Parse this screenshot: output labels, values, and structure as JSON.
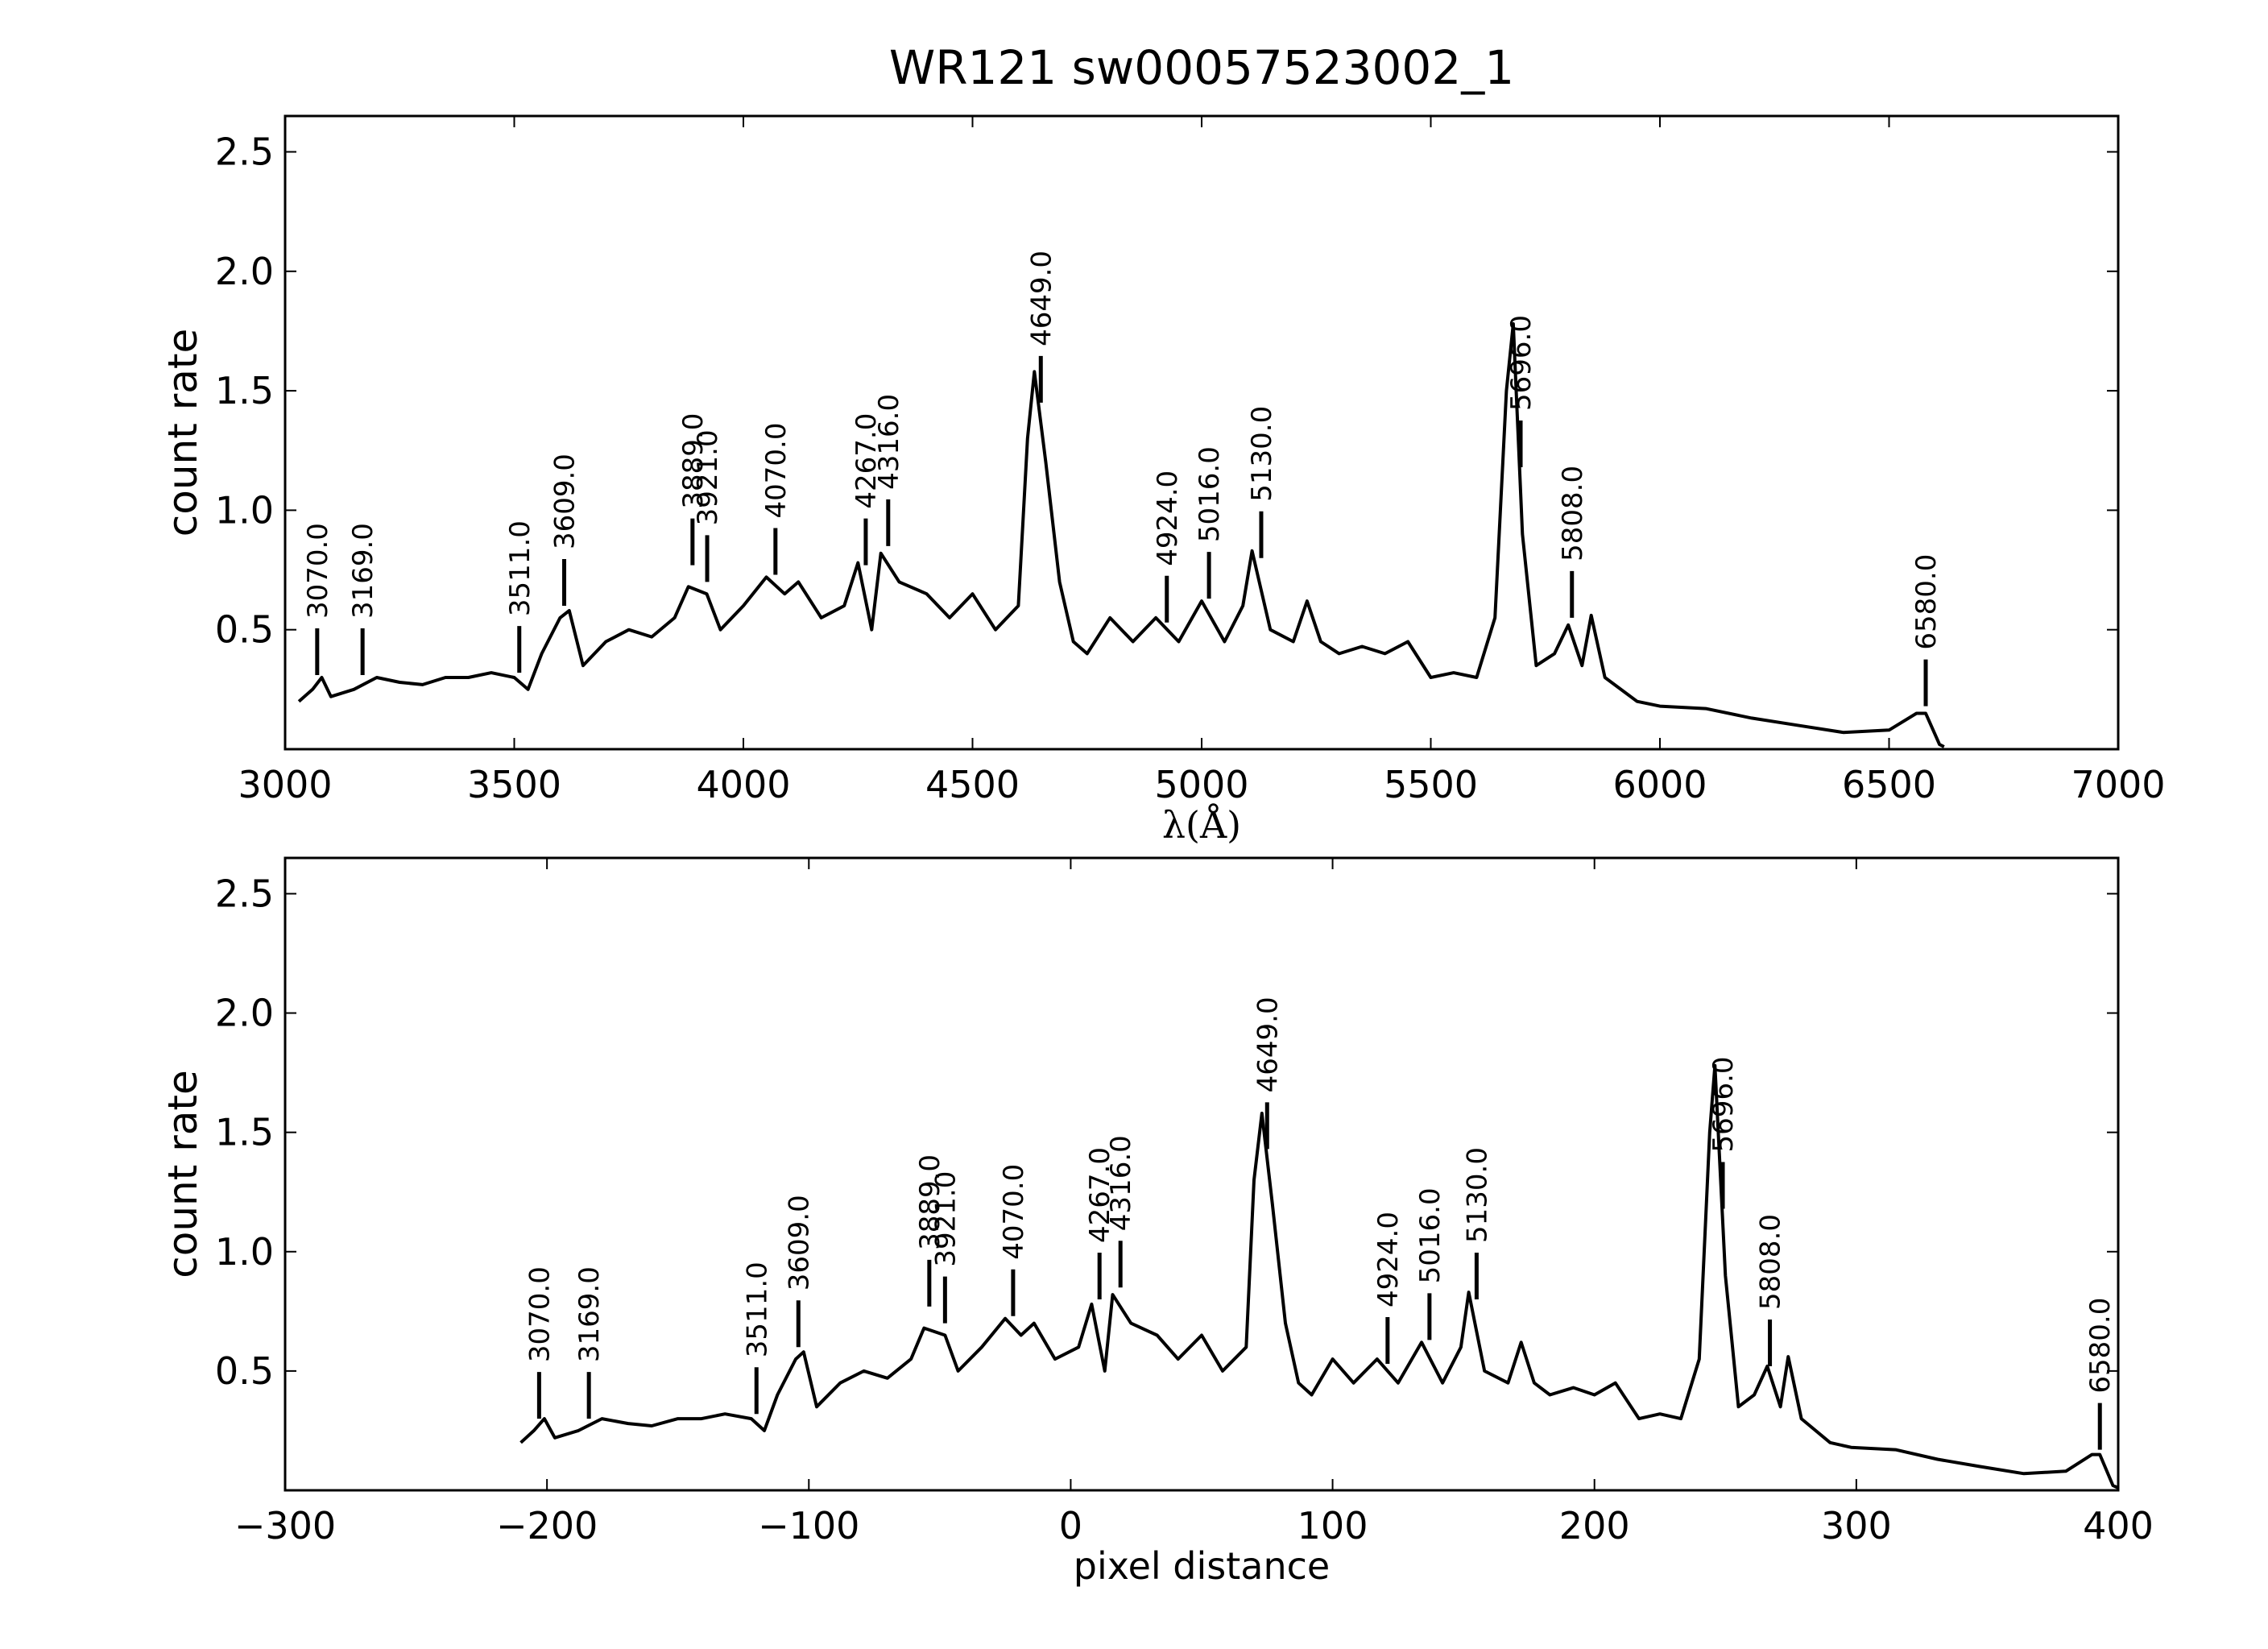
{
  "chart_data": [
    {
      "type": "line",
      "title": "WR121  sw00057523002_1",
      "xlabel": "λ(Å)",
      "ylabel": "count rate",
      "xlim": [
        3000,
        7000
      ],
      "ylim": [
        0,
        2.65
      ],
      "xticks": [
        3000,
        3500,
        4000,
        4500,
        5000,
        5500,
        6000,
        6500,
        7000
      ],
      "yticks": [
        0.5,
        {
          "value": 1,
          "label": "1.0"
        },
        1.5,
        {
          "value": 2,
          "label": "2.0"
        },
        2.5
      ],
      "x": [
        3030,
        3060,
        3080,
        3100,
        3150,
        3200,
        3250,
        3300,
        3350,
        3400,
        3450,
        3500,
        3530,
        3560,
        3600,
        3620,
        3650,
        3700,
        3750,
        3800,
        3850,
        3880,
        3920,
        3950,
        4000,
        4050,
        4090,
        4120,
        4170,
        4220,
        4250,
        4280,
        4300,
        4340,
        4400,
        4450,
        4500,
        4550,
        4600,
        4620,
        4635,
        4660,
        4690,
        4720,
        4750,
        4800,
        4850,
        4900,
        4950,
        5000,
        5050,
        5090,
        5110,
        5150,
        5200,
        5230,
        5260,
        5300,
        5350,
        5400,
        5450,
        5500,
        5550,
        5600,
        5640,
        5665,
        5680,
        5700,
        5730,
        5770,
        5800,
        5830,
        5850,
        5880,
        5950,
        6000,
        6100,
        6200,
        6300,
        6400,
        6500,
        6560,
        6580,
        6610,
        6620
      ],
      "series": [
        {
          "color": "#000000",
          "values": [
            0.2,
            0.25,
            0.3,
            0.22,
            0.25,
            0.3,
            0.28,
            0.27,
            0.3,
            0.3,
            0.32,
            0.3,
            0.25,
            0.4,
            0.55,
            0.58,
            0.35,
            0.45,
            0.5,
            0.47,
            0.55,
            0.68,
            0.65,
            0.5,
            0.6,
            0.72,
            0.65,
            0.7,
            0.55,
            0.6,
            0.78,
            0.5,
            0.82,
            0.7,
            0.65,
            0.55,
            0.65,
            0.5,
            0.6,
            1.3,
            1.58,
            1.2,
            0.7,
            0.45,
            0.4,
            0.55,
            0.45,
            0.55,
            0.45,
            0.62,
            0.45,
            0.6,
            0.83,
            0.5,
            0.45,
            0.62,
            0.45,
            0.4,
            0.43,
            0.4,
            0.45,
            0.3,
            0.32,
            0.3,
            0.55,
            1.5,
            1.78,
            0.9,
            0.35,
            0.4,
            0.52,
            0.35,
            0.56,
            0.3,
            0.2,
            0.18,
            0.17,
            0.13,
            0.1,
            0.07,
            0.08,
            0.15,
            0.15,
            0.02,
            0.01
          ]
        }
      ],
      "annotations": [
        {
          "x": 3070,
          "y": 0.31,
          "label": "3070.0"
        },
        {
          "x": 3169,
          "y": 0.31,
          "label": "3169.0"
        },
        {
          "x": 3511,
          "y": 0.32,
          "label": "3511.0"
        },
        {
          "x": 3609,
          "y": 0.6,
          "label": "3609.0"
        },
        {
          "x": 3889,
          "y": 0.77,
          "label": "3889.0"
        },
        {
          "x": 3921,
          "y": 0.7,
          "label": "3921.0"
        },
        {
          "x": 4070,
          "y": 0.73,
          "label": "4070.0"
        },
        {
          "x": 4267,
          "y": 0.77,
          "label": "4267.0"
        },
        {
          "x": 4316,
          "y": 0.85,
          "label": "4316.0"
        },
        {
          "x": 4649,
          "y": 1.45,
          "label": "4649.0"
        },
        {
          "x": 4924,
          "y": 0.53,
          "label": "4924.0"
        },
        {
          "x": 5016,
          "y": 0.63,
          "label": "5016.0"
        },
        {
          "x": 5130,
          "y": 0.8,
          "label": "5130.0"
        },
        {
          "x": 5696,
          "y": 1.18,
          "label": "5696.0"
        },
        {
          "x": 5808,
          "y": 0.55,
          "label": "5808.0"
        },
        {
          "x": 6580,
          "y": 0.18,
          "label": "6580.0"
        }
      ]
    },
    {
      "type": "line",
      "xlabel": "pixel distance",
      "ylabel": "count rate",
      "xlim": [
        -300,
        400
      ],
      "ylim": [
        0,
        2.65
      ],
      "xticks": [
        {
          "value": -300,
          "label": "−300"
        },
        {
          "value": -200,
          "label": "−200"
        },
        {
          "value": -100,
          "label": "−100"
        },
        0,
        100,
        200,
        300,
        400
      ],
      "yticks": [
        0.5,
        {
          "value": 1,
          "label": "1.0"
        },
        1.5,
        {
          "value": 2,
          "label": "2.0"
        },
        2.5
      ],
      "x": [
        -210,
        -205,
        -201,
        -197,
        -188,
        -179,
        -169,
        -160,
        -150,
        -141,
        -132,
        -122,
        -117,
        -112,
        -105,
        -102,
        -97,
        -88,
        -79,
        -70,
        -61,
        -56,
        -48,
        -43,
        -34,
        -25,
        -19,
        -14,
        -6,
        3,
        8,
        13,
        16,
        23,
        33,
        41,
        50,
        58,
        67,
        70,
        73,
        77,
        82,
        87,
        92,
        100,
        108,
        117,
        125,
        134,
        142,
        149,
        152,
        158,
        167,
        172,
        177,
        183,
        192,
        200,
        208,
        217,
        225,
        233,
        240,
        244,
        246,
        250,
        255,
        261,
        266,
        271,
        274,
        279,
        290,
        298,
        315,
        331,
        347,
        364,
        380,
        390,
        393,
        398,
        400
      ],
      "series": [
        {
          "color": "#000000",
          "values": [
            0.2,
            0.25,
            0.3,
            0.22,
            0.25,
            0.3,
            0.28,
            0.27,
            0.3,
            0.3,
            0.32,
            0.3,
            0.25,
            0.4,
            0.55,
            0.58,
            0.35,
            0.45,
            0.5,
            0.47,
            0.55,
            0.68,
            0.65,
            0.5,
            0.6,
            0.72,
            0.65,
            0.7,
            0.55,
            0.6,
            0.78,
            0.5,
            0.82,
            0.7,
            0.65,
            0.55,
            0.65,
            0.5,
            0.6,
            1.3,
            1.58,
            1.2,
            0.7,
            0.45,
            0.4,
            0.55,
            0.45,
            0.55,
            0.45,
            0.62,
            0.45,
            0.6,
            0.83,
            0.5,
            0.45,
            0.62,
            0.45,
            0.4,
            0.43,
            0.4,
            0.45,
            0.3,
            0.32,
            0.3,
            0.55,
            1.5,
            1.78,
            0.9,
            0.35,
            0.4,
            0.52,
            0.35,
            0.56,
            0.3,
            0.2,
            0.18,
            0.17,
            0.13,
            0.1,
            0.07,
            0.08,
            0.15,
            0.15,
            0.02,
            0.01
          ]
        }
      ],
      "annotations": [
        {
          "x": -203,
          "y": 0.3,
          "label": "3070.0"
        },
        {
          "x": -184,
          "y": 0.3,
          "label": "3169.0"
        },
        {
          "x": -120,
          "y": 0.32,
          "label": "3511.0"
        },
        {
          "x": -104,
          "y": 0.6,
          "label": "3609.0"
        },
        {
          "x": -54,
          "y": 0.77,
          "label": "3889.0"
        },
        {
          "x": -48,
          "y": 0.7,
          "label": "3921.0"
        },
        {
          "x": -22,
          "y": 0.73,
          "label": "4070.0"
        },
        {
          "x": 11,
          "y": 0.8,
          "label": "4267.0"
        },
        {
          "x": 19,
          "y": 0.85,
          "label": "4316.0"
        },
        {
          "x": 75,
          "y": 1.43,
          "label": "4649.0"
        },
        {
          "x": 121,
          "y": 0.53,
          "label": "4924.0"
        },
        {
          "x": 137,
          "y": 0.63,
          "label": "5016.0"
        },
        {
          "x": 155,
          "y": 0.8,
          "label": "5130.0"
        },
        {
          "x": 249,
          "y": 1.18,
          "label": "5696.0"
        },
        {
          "x": 267,
          "y": 0.52,
          "label": "5808.0"
        },
        {
          "x": 393,
          "y": 0.17,
          "label": "6580.0"
        }
      ]
    }
  ]
}
